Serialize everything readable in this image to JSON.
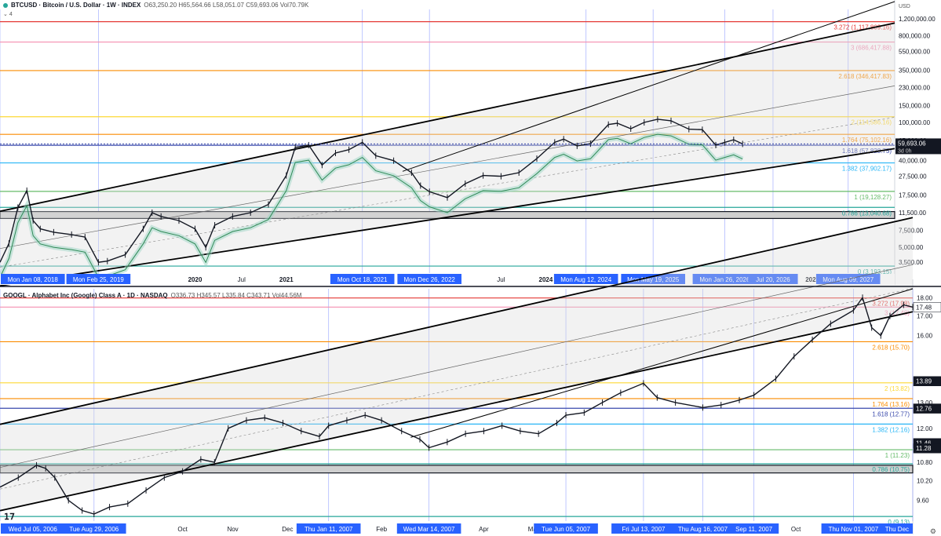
{
  "chart_data": [
    {
      "type": "line",
      "symbol": "BTCUSD · Bitcoin / U.S. Dollar · 1W · INDEX",
      "ohlc": "O63,250.20 H65,564.66 L58,051.07 C59,693.06 Vol70.79K",
      "indicator_count": "4",
      "scale": "log",
      "currency": "USD",
      "ylim": [
        2700,
        1500000
      ],
      "y_ticks": [
        "1,200,000.00",
        "800,000.00",
        "550,000.00",
        "350,000.00",
        "230,000.00",
        "150,000.00",
        "100,000.00",
        "65,000.00",
        "40,000.00",
        "27,500.00",
        "17,500.00",
        "11,500.00",
        "7,500.00",
        "5,000.00",
        "3,500.00"
      ],
      "y_tick_values": [
        1200000,
        800000,
        550000,
        350000,
        230000,
        150000,
        100000,
        65000,
        40000,
        27500,
        17500,
        11500,
        7500,
        5000,
        3500
      ],
      "x_ticks": [
        "Jul",
        "2020",
        "Jul",
        "2021",
        "Jul",
        "Jul",
        "2024",
        "2027"
      ],
      "x_tick_labels_plain": [
        {
          "label": "Jul",
          "t": 0.09
        },
        {
          "label": "2020",
          "t": 0.218
        },
        {
          "label": "Jul",
          "t": 0.27
        },
        {
          "label": "2021",
          "t": 0.32
        },
        {
          "label": "Jul",
          "t": 0.466
        },
        {
          "label": "Jul",
          "t": 0.56
        },
        {
          "label": "2024",
          "t": 0.61
        },
        {
          "label": "2027",
          "t": 0.908
        }
      ],
      "date_markers": [
        "Mon Jan 08, 2018",
        "Mon Feb 25, 2019",
        "Mon Oct 18, 2021",
        "Mon Dec 26, 2022",
        "Mon Aug 12, 2024",
        "Mon May 19, 2025",
        "Mon Jan 26, 2026",
        "Jul 20, 2026",
        "Mon Aug 09, 2027"
      ],
      "date_marker_positions": [
        0.0,
        0.11,
        0.405,
        0.48,
        0.655,
        0.73,
        0.81,
        0.864,
        0.948
      ],
      "price_label": "59,693.06",
      "price_sublabel": "3d 0h",
      "current_price": 59693.06,
      "fib_levels": [
        {
          "label": "3.272 (1,117,809.16)",
          "value": 1117809.16,
          "color": "#e53935"
        },
        {
          "label": "3 (686,417.88)",
          "value": 686417.88,
          "color": "#f48fb1"
        },
        {
          "label": "2.618 (346,417.83)",
          "value": 346417.83,
          "color": "#fb8c00"
        },
        {
          "label": "2 (114,586.16)",
          "value": 114586.16,
          "color": "#fdd835"
        },
        {
          "label": "1.764 (75,102.16)",
          "value": 75102.16,
          "color": "#fb8c00"
        },
        {
          "label": "1.618 (57,828.75)",
          "value": 57828.75,
          "color": "#3949ab"
        },
        {
          "label": "1.382 (37,902.17)",
          "value": 37902.17,
          "color": "#29b6f6"
        },
        {
          "label": "1 (19,128.27)",
          "value": 19128.27,
          "color": "#66bb6a"
        },
        {
          "label": "0.786 (13,040.68)",
          "value": 13040.68,
          "color": "#26a69a"
        },
        {
          "label": "0 (3,193.15)",
          "value": 3193.15,
          "color": "#26a69a"
        }
      ],
      "zone": [
        10000,
        11800
      ],
      "series": [
        {
          "values": [
            [
              0.0,
              3500
            ],
            [
              0.01,
              5500
            ],
            [
              0.02,
              13000
            ],
            [
              0.03,
              19500
            ],
            [
              0.037,
              9500
            ],
            [
              0.045,
              7800
            ],
            [
              0.06,
              7200
            ],
            [
              0.08,
              6800
            ],
            [
              0.095,
              6400
            ],
            [
              0.11,
              3500
            ],
            [
              0.12,
              3600
            ],
            [
              0.14,
              4200
            ],
            [
              0.16,
              7800
            ],
            [
              0.17,
              11500
            ],
            [
              0.18,
              10500
            ],
            [
              0.2,
              9500
            ],
            [
              0.218,
              7800
            ],
            [
              0.23,
              5000
            ],
            [
              0.24,
              8500
            ],
            [
              0.26,
              10500
            ],
            [
              0.28,
              11500
            ],
            [
              0.3,
              14000
            ],
            [
              0.32,
              28000
            ],
            [
              0.33,
              55000
            ],
            [
              0.345,
              58000
            ],
            [
              0.36,
              36000
            ],
            [
              0.375,
              48000
            ],
            [
              0.39,
              52000
            ],
            [
              0.405,
              62000
            ],
            [
              0.42,
              45000
            ],
            [
              0.44,
              40000
            ],
            [
              0.46,
              30000
            ],
            [
              0.47,
              22000
            ],
            [
              0.48,
              19000
            ],
            [
              0.5,
              16500
            ],
            [
              0.52,
              23000
            ],
            [
              0.54,
              28000
            ],
            [
              0.56,
              27500
            ],
            [
              0.58,
              30000
            ],
            [
              0.6,
              42000
            ],
            [
              0.62,
              62000
            ],
            [
              0.63,
              67000
            ],
            [
              0.645,
              57000
            ],
            [
              0.66,
              60000
            ],
            [
              0.68,
              95000
            ],
            [
              0.69,
              98000
            ],
            [
              0.705,
              86000
            ],
            [
              0.72,
              100000
            ],
            [
              0.735,
              108000
            ],
            [
              0.75,
              104000
            ],
            [
              0.77,
              85000
            ],
            [
              0.785,
              84000
            ],
            [
              0.8,
              58000
            ],
            [
              0.81,
              62000
            ],
            [
              0.82,
              66000
            ],
            [
              0.83,
              59693
            ]
          ]
        }
      ]
    },
    {
      "type": "line",
      "symbol": "GOOGL · Alphabet Inc (Google) Class A · 1D · NASDAQ",
      "ohlc": "O336.73 H345.57 L335.84 C343.71 Vol44.56M",
      "scale": "log",
      "ylim": [
        9.0,
        18.5
      ],
      "y_ticks": [
        "18.00",
        "17.00",
        "16.00",
        "13.00",
        "12.00",
        "10.80",
        "10.20",
        "9.60"
      ],
      "y_tick_values": [
        18.0,
        17.0,
        16.0,
        13.0,
        12.0,
        10.8,
        10.2,
        9.6
      ],
      "x_ticks": [
        "Aug",
        "Oct",
        "Nov",
        "Dec",
        "Feb",
        "Apr",
        "May",
        "Oct"
      ],
      "x_tick_labels_plain": [
        {
          "label": "Aug",
          "t": 0.085
        },
        {
          "label": "Oct",
          "t": 0.2
        },
        {
          "label": "Nov",
          "t": 0.255
        },
        {
          "label": "Dec",
          "t": 0.315
        },
        {
          "label": "Feb",
          "t": 0.418
        },
        {
          "label": "Apr",
          "t": 0.53
        },
        {
          "label": "May",
          "t": 0.585
        },
        {
          "label": "Oct",
          "t": 0.872
        }
      ],
      "date_markers": [
        "Wed Jul 05, 2006",
        "Tue Aug 29, 2006",
        "Thu Jan 11, 2007",
        "Wed Mar 14, 2007",
        "Tue Jun 05, 2007",
        "Fri Jul 13, 2007",
        "Thu Aug 16, 2007",
        "Sep 11, 2007",
        "Thu Nov 01, 2007",
        "Thu Dec"
      ],
      "date_marker_positions": [
        0.0,
        0.103,
        0.36,
        0.47,
        0.62,
        0.705,
        0.77,
        0.826,
        0.935,
        1.0
      ],
      "price_labels": [
        {
          "text": "17.48",
          "value": 17.48,
          "bg": "#ffffff",
          "fg": "#131722"
        },
        {
          "text": "13.89",
          "value": 13.89,
          "bg": "#131722",
          "fg": "#ffffff"
        },
        {
          "text": "12.76",
          "value": 12.76,
          "bg": "#131722",
          "fg": "#ffffff"
        },
        {
          "text": "11.46",
          "value": 11.46,
          "bg": "#131722",
          "fg": "#ffffff"
        },
        {
          "text": "11.28",
          "value": 11.28,
          "bg": "#131722",
          "fg": "#ffffff"
        }
      ],
      "fib_levels": [
        {
          "label": "3.272 (17.98)",
          "value": 17.98,
          "color": "#e53935"
        },
        {
          "label": "3 (17.48)",
          "value": 17.48,
          "color": "#f48fb1"
        },
        {
          "label": "2.618 (15.70)",
          "value": 15.7,
          "color": "#fb8c00"
        },
        {
          "label": "2 (13.82)",
          "value": 13.82,
          "color": "#fdd835"
        },
        {
          "label": "1.764 (13.16)",
          "value": 13.16,
          "color": "#fb8c00"
        },
        {
          "label": "1.618 (12.77)",
          "value": 12.77,
          "color": "#3949ab"
        },
        {
          "label": "1.382 (12.16)",
          "value": 12.16,
          "color": "#29b6f6"
        },
        {
          "label": "1 (11.23)",
          "value": 11.23,
          "color": "#66bb6a"
        },
        {
          "label": "0.786 (10.75)",
          "value": 10.75,
          "color": "#26a69a"
        },
        {
          "label": "0 (9.13)",
          "value": 9.13,
          "color": "#26a69a"
        }
      ],
      "zone": [
        10.45,
        10.7
      ],
      "series": [
        {
          "values": [
            [
              0.0,
              10.0
            ],
            [
              0.02,
              10.3
            ],
            [
              0.04,
              10.7
            ],
            [
              0.05,
              10.6
            ],
            [
              0.06,
              10.3
            ],
            [
              0.075,
              9.6
            ],
            [
              0.09,
              9.3
            ],
            [
              0.103,
              9.2
            ],
            [
              0.12,
              9.4
            ],
            [
              0.14,
              9.5
            ],
            [
              0.16,
              9.9
            ],
            [
              0.18,
              10.3
            ],
            [
              0.2,
              10.5
            ],
            [
              0.22,
              10.9
            ],
            [
              0.235,
              10.8
            ],
            [
              0.25,
              12.0
            ],
            [
              0.27,
              12.3
            ],
            [
              0.29,
              12.4
            ],
            [
              0.31,
              12.2
            ],
            [
              0.33,
              11.9
            ],
            [
              0.35,
              11.7
            ],
            [
              0.36,
              12.1
            ],
            [
              0.38,
              12.3
            ],
            [
              0.4,
              12.5
            ],
            [
              0.418,
              12.3
            ],
            [
              0.44,
              11.9
            ],
            [
              0.46,
              11.6
            ],
            [
              0.47,
              11.3
            ],
            [
              0.49,
              11.5
            ],
            [
              0.51,
              11.8
            ],
            [
              0.53,
              11.9
            ],
            [
              0.55,
              12.1
            ],
            [
              0.57,
              11.9
            ],
            [
              0.59,
              11.8
            ],
            [
              0.61,
              12.2
            ],
            [
              0.62,
              12.5
            ],
            [
              0.64,
              12.6
            ],
            [
              0.66,
              13.0
            ],
            [
              0.68,
              13.4
            ],
            [
              0.705,
              13.8
            ],
            [
              0.72,
              13.2
            ],
            [
              0.74,
              13.0
            ],
            [
              0.77,
              12.8
            ],
            [
              0.79,
              12.9
            ],
            [
              0.81,
              13.1
            ],
            [
              0.826,
              13.3
            ],
            [
              0.85,
              14.0
            ],
            [
              0.87,
              15.0
            ],
            [
              0.89,
              15.8
            ],
            [
              0.91,
              16.6
            ],
            [
              0.935,
              17.3
            ],
            [
              0.945,
              18.0
            ],
            [
              0.955,
              16.4
            ],
            [
              0.965,
              16.0
            ],
            [
              0.975,
              17.0
            ],
            [
              0.99,
              17.6
            ],
            [
              1.0,
              17.48
            ]
          ]
        }
      ]
    }
  ]
}
